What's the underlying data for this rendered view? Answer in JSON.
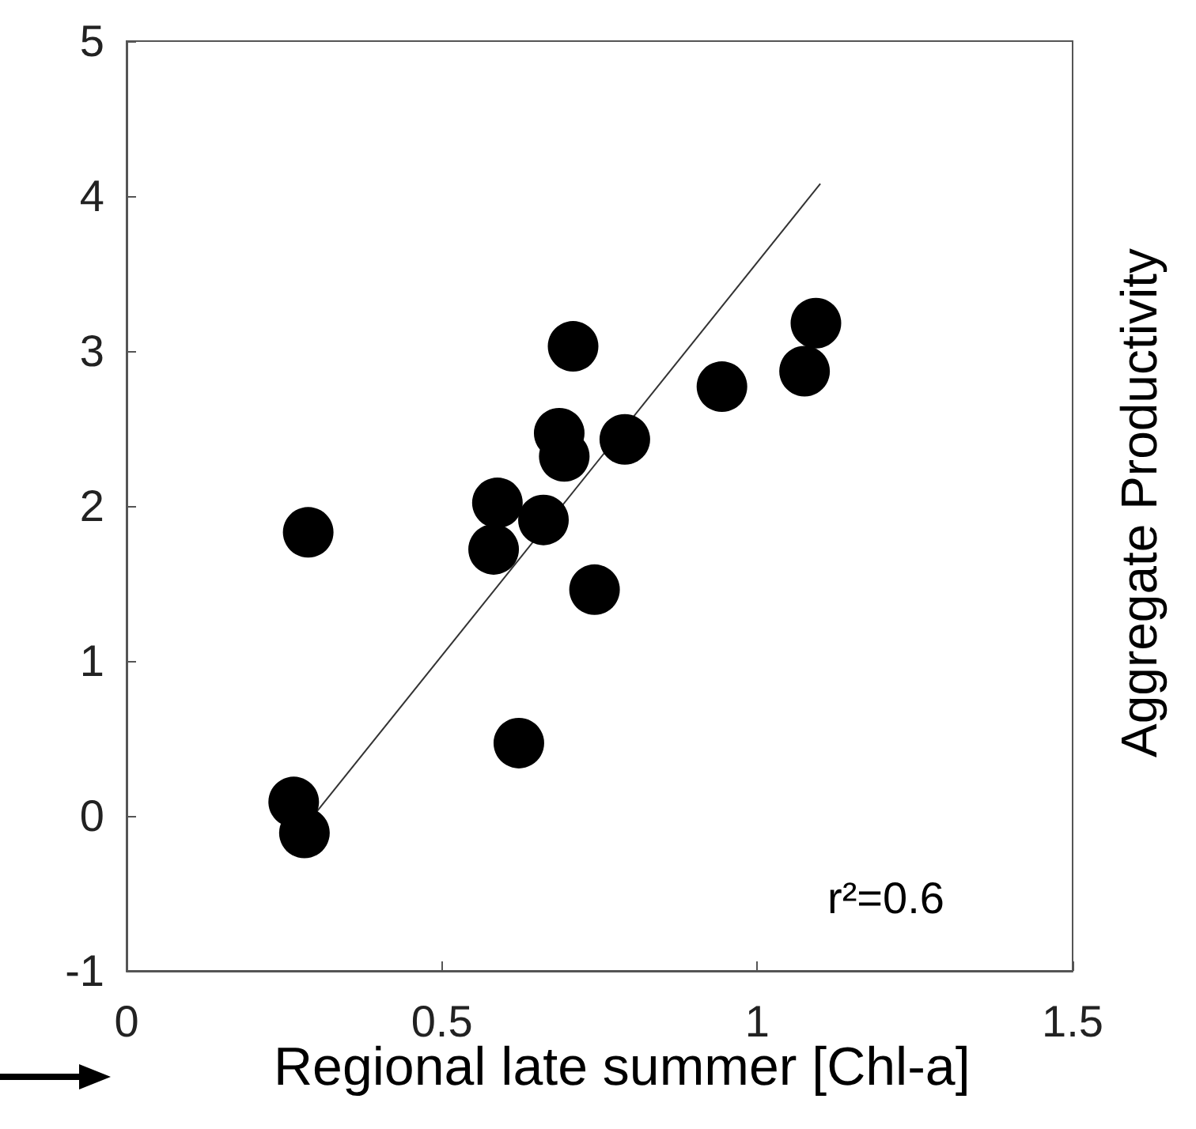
{
  "chart_data": {
    "type": "scatter",
    "xlabel": "Regional late summer [Chl-a]",
    "ylabel": "Aggregate Productivity",
    "annotations": [
      "r²=0.6"
    ],
    "xlim": [
      0,
      1.5
    ],
    "xticks": [
      0,
      0.5,
      1,
      1.5
    ],
    "ylim": [
      -1,
      5
    ],
    "yticks": [
      -1,
      0,
      1,
      2,
      3,
      4,
      5
    ],
    "grid": false,
    "series": [
      {
        "color": "#000000",
        "marker": "circle",
        "x": [
          0.265,
          0.282,
          0.288,
          0.622,
          0.582,
          0.588,
          0.661,
          0.742,
          0.686,
          0.694,
          0.79,
          0.708,
          0.944,
          1.075,
          1.093
        ],
        "values": [
          0.09,
          -0.11,
          1.83,
          0.47,
          1.72,
          2.02,
          1.91,
          1.46,
          2.47,
          2.32,
          2.43,
          3.03,
          2.77,
          2.87,
          3.18
        ]
      },
      {
        "type": "line",
        "color": "#333333",
        "marker": "none",
        "x": [
          0.3,
          1.1
        ],
        "values": [
          0.02,
          4.08
        ]
      }
    ]
  }
}
